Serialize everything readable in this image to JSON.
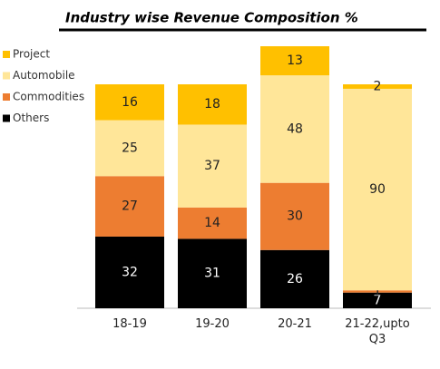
{
  "chart_data": {
    "type": "stacked-bar",
    "title": "Industry wise Revenue Composition %",
    "categories": [
      "18-19",
      "19-20",
      "20-21",
      "21-22,upto Q3"
    ],
    "series": [
      {
        "name": "Others",
        "color": "#000000",
        "values": [
          32,
          31,
          26,
          7
        ]
      },
      {
        "name": "Commodities",
        "color": "#ed7d31",
        "values": [
          27,
          14,
          30,
          1
        ]
      },
      {
        "name": "Automobile",
        "color": "#ffe699",
        "values": [
          25,
          37,
          48,
          90
        ]
      },
      {
        "name": "Project",
        "color": "#ffc000",
        "values": [
          16,
          18,
          13,
          2
        ]
      }
    ]
  }
}
